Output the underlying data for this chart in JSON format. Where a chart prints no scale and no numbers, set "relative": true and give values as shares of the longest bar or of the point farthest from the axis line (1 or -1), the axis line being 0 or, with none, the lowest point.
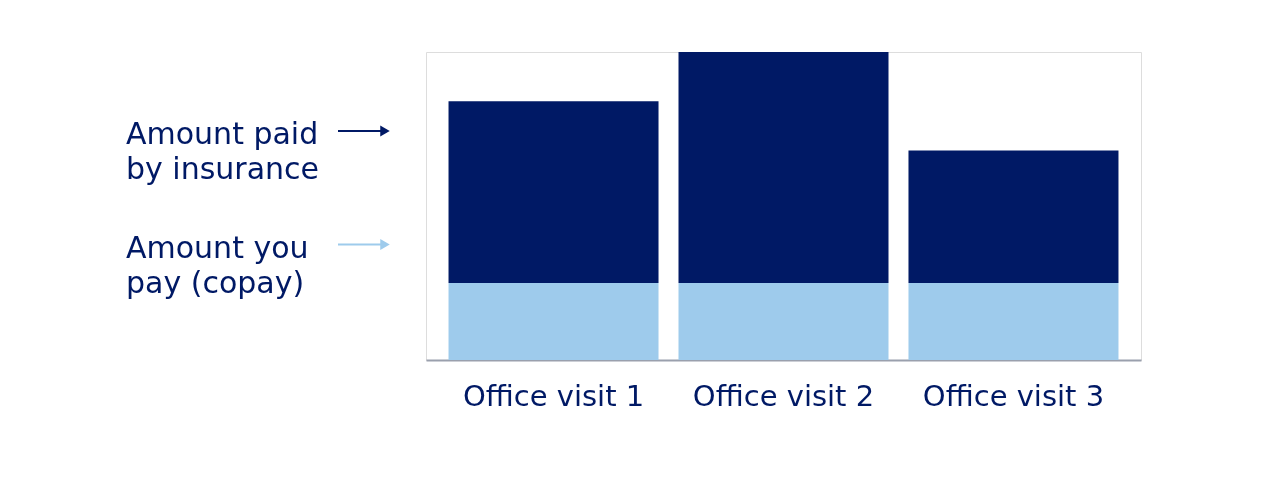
{
  "chart_data": {
    "type": "bar",
    "stacked": true,
    "relative": true,
    "legend": "left",
    "categories": [
      "Office visit 1",
      "Office visit 2",
      "Office visit 3"
    ],
    "series": [
      {
        "name": "Amount you pay (copay)",
        "color": "#9ecbec",
        "values": [
          0.25,
          0.25,
          0.25
        ]
      },
      {
        "name": "Amount paid by insurance",
        "color": "#001965",
        "values": [
          0.59,
          0.75,
          0.43
        ]
      }
    ]
  }
}
